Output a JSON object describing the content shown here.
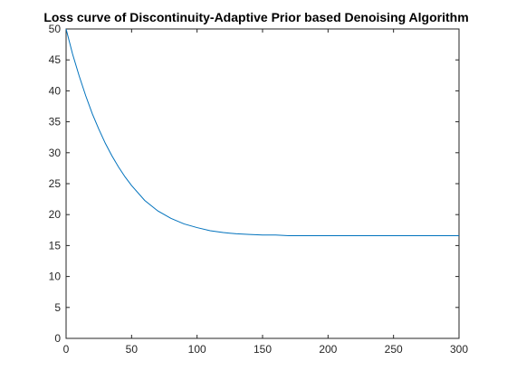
{
  "chart_data": {
    "type": "line",
    "title": "Loss curve of Discontinuity-Adaptive Prior based Denoising Algorithm",
    "xlabel": "",
    "ylabel": "",
    "xlim": [
      0,
      300
    ],
    "ylim": [
      0,
      50
    ],
    "xticks": [
      "0",
      "50",
      "100",
      "150",
      "200",
      "250",
      "300"
    ],
    "yticks": [
      "0",
      "5",
      "10",
      "15",
      "20",
      "25",
      "30",
      "35",
      "40",
      "45",
      "50"
    ],
    "grid": false,
    "line_color": "#0072BD",
    "series": [
      {
        "x": [
          0,
          5,
          10,
          15,
          20,
          25,
          30,
          35,
          40,
          45,
          50,
          60,
          70,
          80,
          90,
          100,
          110,
          120,
          130,
          140,
          150,
          160,
          170,
          180,
          190,
          200,
          220,
          240,
          260,
          280,
          300
        ],
        "values": [
          50.0,
          45.9,
          42.4,
          39.2,
          36.3,
          33.8,
          31.5,
          29.5,
          27.7,
          26.1,
          24.7,
          22.3,
          20.6,
          19.4,
          18.5,
          17.9,
          17.4,
          17.1,
          16.9,
          16.8,
          16.7,
          16.7,
          16.6,
          16.6,
          16.6,
          16.6,
          16.6,
          16.6,
          16.6,
          16.6,
          16.6
        ]
      }
    ]
  }
}
